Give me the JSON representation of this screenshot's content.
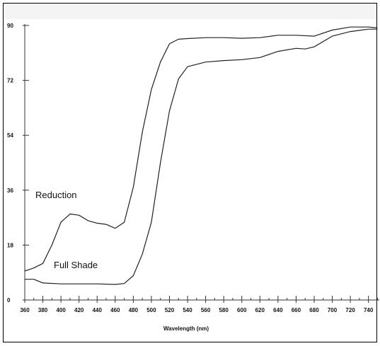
{
  "chart_data": {
    "type": "line",
    "xlabel": "Wavelength (nm)",
    "ylabel": "",
    "xlim": [
      360,
      750
    ],
    "ylim": [
      0,
      90
    ],
    "x_ticks": [
      360,
      380,
      400,
      420,
      440,
      460,
      480,
      500,
      520,
      540,
      560,
      580,
      600,
      620,
      640,
      660,
      680,
      700,
      720,
      740
    ],
    "y_ticks": [
      0,
      18,
      36,
      54,
      72,
      90
    ],
    "grid": false,
    "legend": "none",
    "series": [
      {
        "name": "Reduction",
        "color": "#222222",
        "x": [
          360,
          370,
          380,
          390,
          400,
          410,
          420,
          430,
          440,
          450,
          460,
          470,
          480,
          490,
          500,
          510,
          520,
          530,
          540,
          560,
          580,
          600,
          620,
          640,
          660,
          680,
          700,
          720,
          740,
          750
        ],
        "y": [
          9.5,
          10.5,
          12,
          18,
          25.5,
          28.2,
          27.8,
          26,
          25.2,
          24.8,
          23.5,
          25.5,
          37,
          55,
          69,
          78,
          84,
          85.5,
          85.7,
          86,
          86,
          85.8,
          86,
          86.8,
          86.8,
          86.5,
          88.5,
          89.5,
          89.5,
          89.2
        ]
      },
      {
        "name": "Full Shade",
        "color": "#222222",
        "x": [
          360,
          370,
          380,
          400,
          420,
          440,
          460,
          470,
          480,
          490,
          500,
          510,
          520,
          530,
          540,
          560,
          580,
          600,
          620,
          640,
          660,
          670,
          680,
          700,
          720,
          740,
          750
        ],
        "y": [
          6.8,
          6.8,
          5.6,
          5.3,
          5.3,
          5.3,
          5.1,
          5.4,
          8,
          15,
          25.5,
          45,
          62,
          72.5,
          76.5,
          78,
          78.5,
          78.8,
          79.5,
          81.5,
          82.5,
          82.3,
          83,
          86.5,
          88,
          88.8,
          88.8
        ]
      }
    ]
  }
}
